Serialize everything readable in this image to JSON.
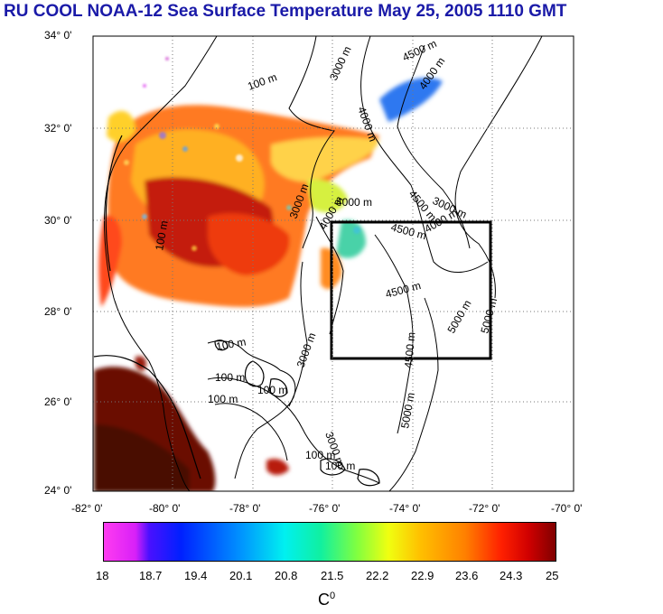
{
  "title": "RU COOL  NOAA-12 Sea Surface Temperature May 25, 2005 1110 GMT",
  "axes": {
    "y_labels": [
      "34° 0'",
      "32° 0'",
      "30° 0'",
      "28° 0'",
      "26° 0'",
      "24° 0'"
    ],
    "x_labels": [
      "-82° 0'",
      "-80° 0'",
      "-78° 0'",
      "-76° 0'",
      "-74° 0'",
      "-72° 0'",
      "-70° 0'"
    ],
    "lon_range": [
      -82,
      -70
    ],
    "lat_range": [
      24,
      34
    ]
  },
  "contour_labels": [
    "100 m",
    "3000 m",
    "4500 m",
    "4000 m",
    "4000 m",
    "4000 m",
    "4500 m",
    "3000 m",
    "4000 m",
    "4500 m",
    "3000 m",
    "4000 m",
    "100 m",
    "4500 m",
    "5000 m",
    "5000 m",
    "100 m",
    "4500 m",
    "3000 m",
    "100 m",
    "100 m",
    "100 m",
    "5000 m",
    "3000 m",
    "100 m",
    "100 m"
  ],
  "study_box": {
    "lon": [
      -76,
      -72
    ],
    "lat": [
      27,
      30
    ]
  },
  "colorbar": {
    "ticks": [
      "18",
      "18.7",
      "19.4",
      "20.1",
      "20.8",
      "21.5",
      "22.2",
      "22.9",
      "23.6",
      "24.3",
      "25"
    ],
    "range": [
      18,
      25
    ],
    "unit": "C",
    "unit_sup": "0"
  }
}
